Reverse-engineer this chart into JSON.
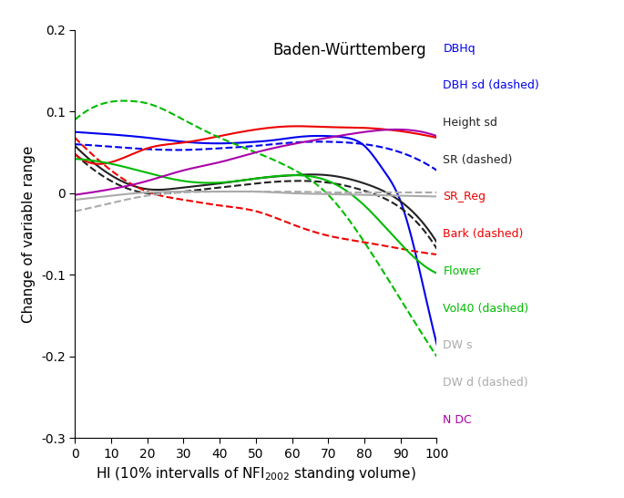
{
  "title": "Baden-Württemberg",
  "ylabel": "Change of variable range",
  "xlim": [
    0,
    100
  ],
  "ylim": [
    -0.3,
    0.2
  ],
  "yticks": [
    -0.3,
    -0.2,
    -0.1,
    0.0,
    0.1,
    0.2
  ],
  "xticks": [
    0,
    10,
    20,
    30,
    40,
    50,
    60,
    70,
    80,
    90,
    100
  ],
  "curves": [
    {
      "name": "DBHq",
      "color": "#0000EE",
      "dashed": false,
      "points_x": [
        0,
        10,
        20,
        30,
        40,
        50,
        55,
        60,
        65,
        70,
        75,
        80,
        85,
        90,
        95,
        100
      ],
      "points_y": [
        0.075,
        0.072,
        0.068,
        0.063,
        0.061,
        0.063,
        0.065,
        0.068,
        0.07,
        0.07,
        0.068,
        0.058,
        0.03,
        -0.01,
        -0.09,
        -0.185
      ]
    },
    {
      "name": "DBH sd (dashed)",
      "color": "#0000EE",
      "dashed": true,
      "points_x": [
        0,
        10,
        20,
        30,
        40,
        50,
        60,
        70,
        80,
        90,
        100
      ],
      "points_y": [
        0.06,
        0.057,
        0.054,
        0.053,
        0.055,
        0.058,
        0.062,
        0.063,
        0.06,
        0.05,
        0.028
      ]
    },
    {
      "name": "Height sd",
      "color": "#222222",
      "dashed": false,
      "points_x": [
        0,
        10,
        20,
        30,
        40,
        50,
        60,
        70,
        80,
        90,
        100
      ],
      "points_y": [
        0.058,
        0.022,
        0.005,
        0.007,
        0.012,
        0.018,
        0.022,
        0.022,
        0.012,
        -0.01,
        -0.06
      ]
    },
    {
      "name": "SR (dashed)",
      "color": "#222222",
      "dashed": true,
      "points_x": [
        0,
        10,
        20,
        30,
        40,
        50,
        60,
        70,
        80,
        90,
        100
      ],
      "points_y": [
        0.048,
        0.015,
        0.0,
        0.002,
        0.007,
        0.012,
        0.015,
        0.013,
        0.003,
        -0.018,
        -0.068
      ]
    },
    {
      "name": "SR_Reg",
      "color": "#EE0000",
      "dashed": false,
      "points_x": [
        0,
        10,
        20,
        30,
        40,
        50,
        60,
        70,
        80,
        90,
        100
      ],
      "points_y": [
        0.048,
        0.038,
        0.055,
        0.062,
        0.07,
        0.078,
        0.082,
        0.081,
        0.08,
        0.076,
        0.068
      ]
    },
    {
      "name": "Bark (dashed)",
      "color": "#EE0000",
      "dashed": true,
      "points_x": [
        0,
        10,
        20,
        30,
        40,
        50,
        60,
        70,
        80,
        90,
        100
      ],
      "points_y": [
        0.068,
        0.028,
        0.002,
        -0.008,
        -0.015,
        -0.022,
        -0.038,
        -0.052,
        -0.06,
        -0.068,
        -0.075
      ]
    },
    {
      "name": "Flower",
      "color": "#00BB00",
      "dashed": false,
      "points_x": [
        0,
        10,
        20,
        30,
        40,
        50,
        60,
        70,
        80,
        90,
        100
      ],
      "points_y": [
        0.042,
        0.036,
        0.025,
        0.015,
        0.013,
        0.018,
        0.022,
        0.015,
        -0.015,
        -0.062,
        -0.098
      ]
    },
    {
      "name": "Vol40 (dashed)",
      "color": "#00BB00",
      "dashed": true,
      "points_x": [
        0,
        5,
        10,
        15,
        20,
        30,
        40,
        50,
        60,
        70,
        80,
        90,
        100
      ],
      "points_y": [
        0.09,
        0.105,
        0.112,
        0.113,
        0.11,
        0.09,
        0.068,
        0.05,
        0.03,
        -0.002,
        -0.06,
        -0.13,
        -0.2
      ]
    },
    {
      "name": "DW s",
      "color": "#AAAAAA",
      "dashed": false,
      "points_x": [
        0,
        10,
        20,
        30,
        40,
        50,
        60,
        70,
        80,
        90,
        100
      ],
      "points_y": [
        -0.008,
        -0.003,
        0.001,
        0.002,
        0.002,
        0.002,
        0.0,
        -0.001,
        -0.002,
        -0.003,
        -0.004
      ]
    },
    {
      "name": "DW d (dashed)",
      "color": "#AAAAAA",
      "dashed": true,
      "points_x": [
        0,
        10,
        20,
        30,
        40,
        50,
        60,
        70,
        80,
        90,
        100
      ],
      "points_y": [
        -0.022,
        -0.012,
        -0.003,
        0.001,
        0.002,
        0.002,
        0.002,
        0.001,
        0.001,
        0.001,
        0.001
      ]
    },
    {
      "name": "N DC",
      "color": "#AA00AA",
      "dashed": false,
      "points_x": [
        0,
        10,
        20,
        30,
        40,
        50,
        60,
        70,
        80,
        90,
        100
      ],
      "points_y": [
        -0.002,
        0.005,
        0.015,
        0.028,
        0.038,
        0.05,
        0.06,
        0.068,
        0.075,
        0.078,
        0.07
      ]
    }
  ],
  "legend": [
    {
      "label": "DBHq",
      "color": "#0000EE",
      "dashed": false
    },
    {
      "label": "DBH sd (dashed)",
      "color": "#0000EE",
      "dashed": true
    },
    {
      "label": "Height sd",
      "color": "#222222",
      "dashed": false
    },
    {
      "label": "SR (dashed)",
      "color": "#222222",
      "dashed": true
    },
    {
      "label": "SR_Reg",
      "color": "#EE0000",
      "dashed": false
    },
    {
      "label": "Bark (dashed)",
      "color": "#EE0000",
      "dashed": true
    },
    {
      "label": "Flower",
      "color": "#00BB00",
      "dashed": false
    },
    {
      "label": "Vol40 (dashed)",
      "color": "#00BB00",
      "dashed": true
    },
    {
      "label": "DW s",
      "color": "#AAAAAA",
      "dashed": false
    },
    {
      "label": "DW d (dashed)",
      "color": "#AAAAAA",
      "dashed": true
    },
    {
      "label": "N DC",
      "color": "#AA00AA",
      "dashed": false
    }
  ]
}
